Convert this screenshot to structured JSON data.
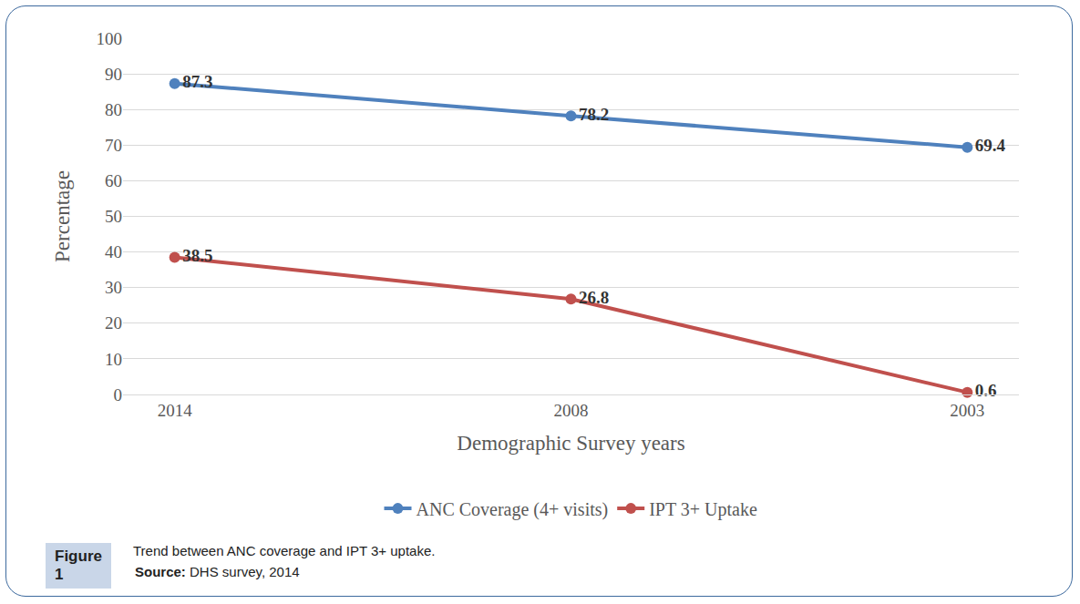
{
  "chart_data": {
    "type": "line",
    "x_label": "Demographic Survey years",
    "y_label": "Percentage",
    "categories": [
      "2014",
      "2008",
      "2003"
    ],
    "series": [
      {
        "name": "ANC Coverage (4+ visits)",
        "color": "#4f81bd",
        "values": [
          87.3,
          78.2,
          69.4
        ],
        "marker": "circle"
      },
      {
        "name": "IPT 3+ Uptake",
        "color": "#c0504d",
        "values": [
          38.5,
          26.8,
          0.6
        ],
        "marker": "circle"
      }
    ],
    "ylim": [
      0,
      100
    ],
    "yticks": [
      0,
      10,
      20,
      30,
      40,
      50,
      60,
      70,
      80,
      90,
      100
    ],
    "grid": true,
    "legend": "bottom",
    "data_labels": true,
    "figure_label": "Figure 1",
    "caption": "Trend between ANC coverage and IPT 3+ uptake.",
    "source_label": "Source:",
    "source": "DHS survey, 2014"
  }
}
